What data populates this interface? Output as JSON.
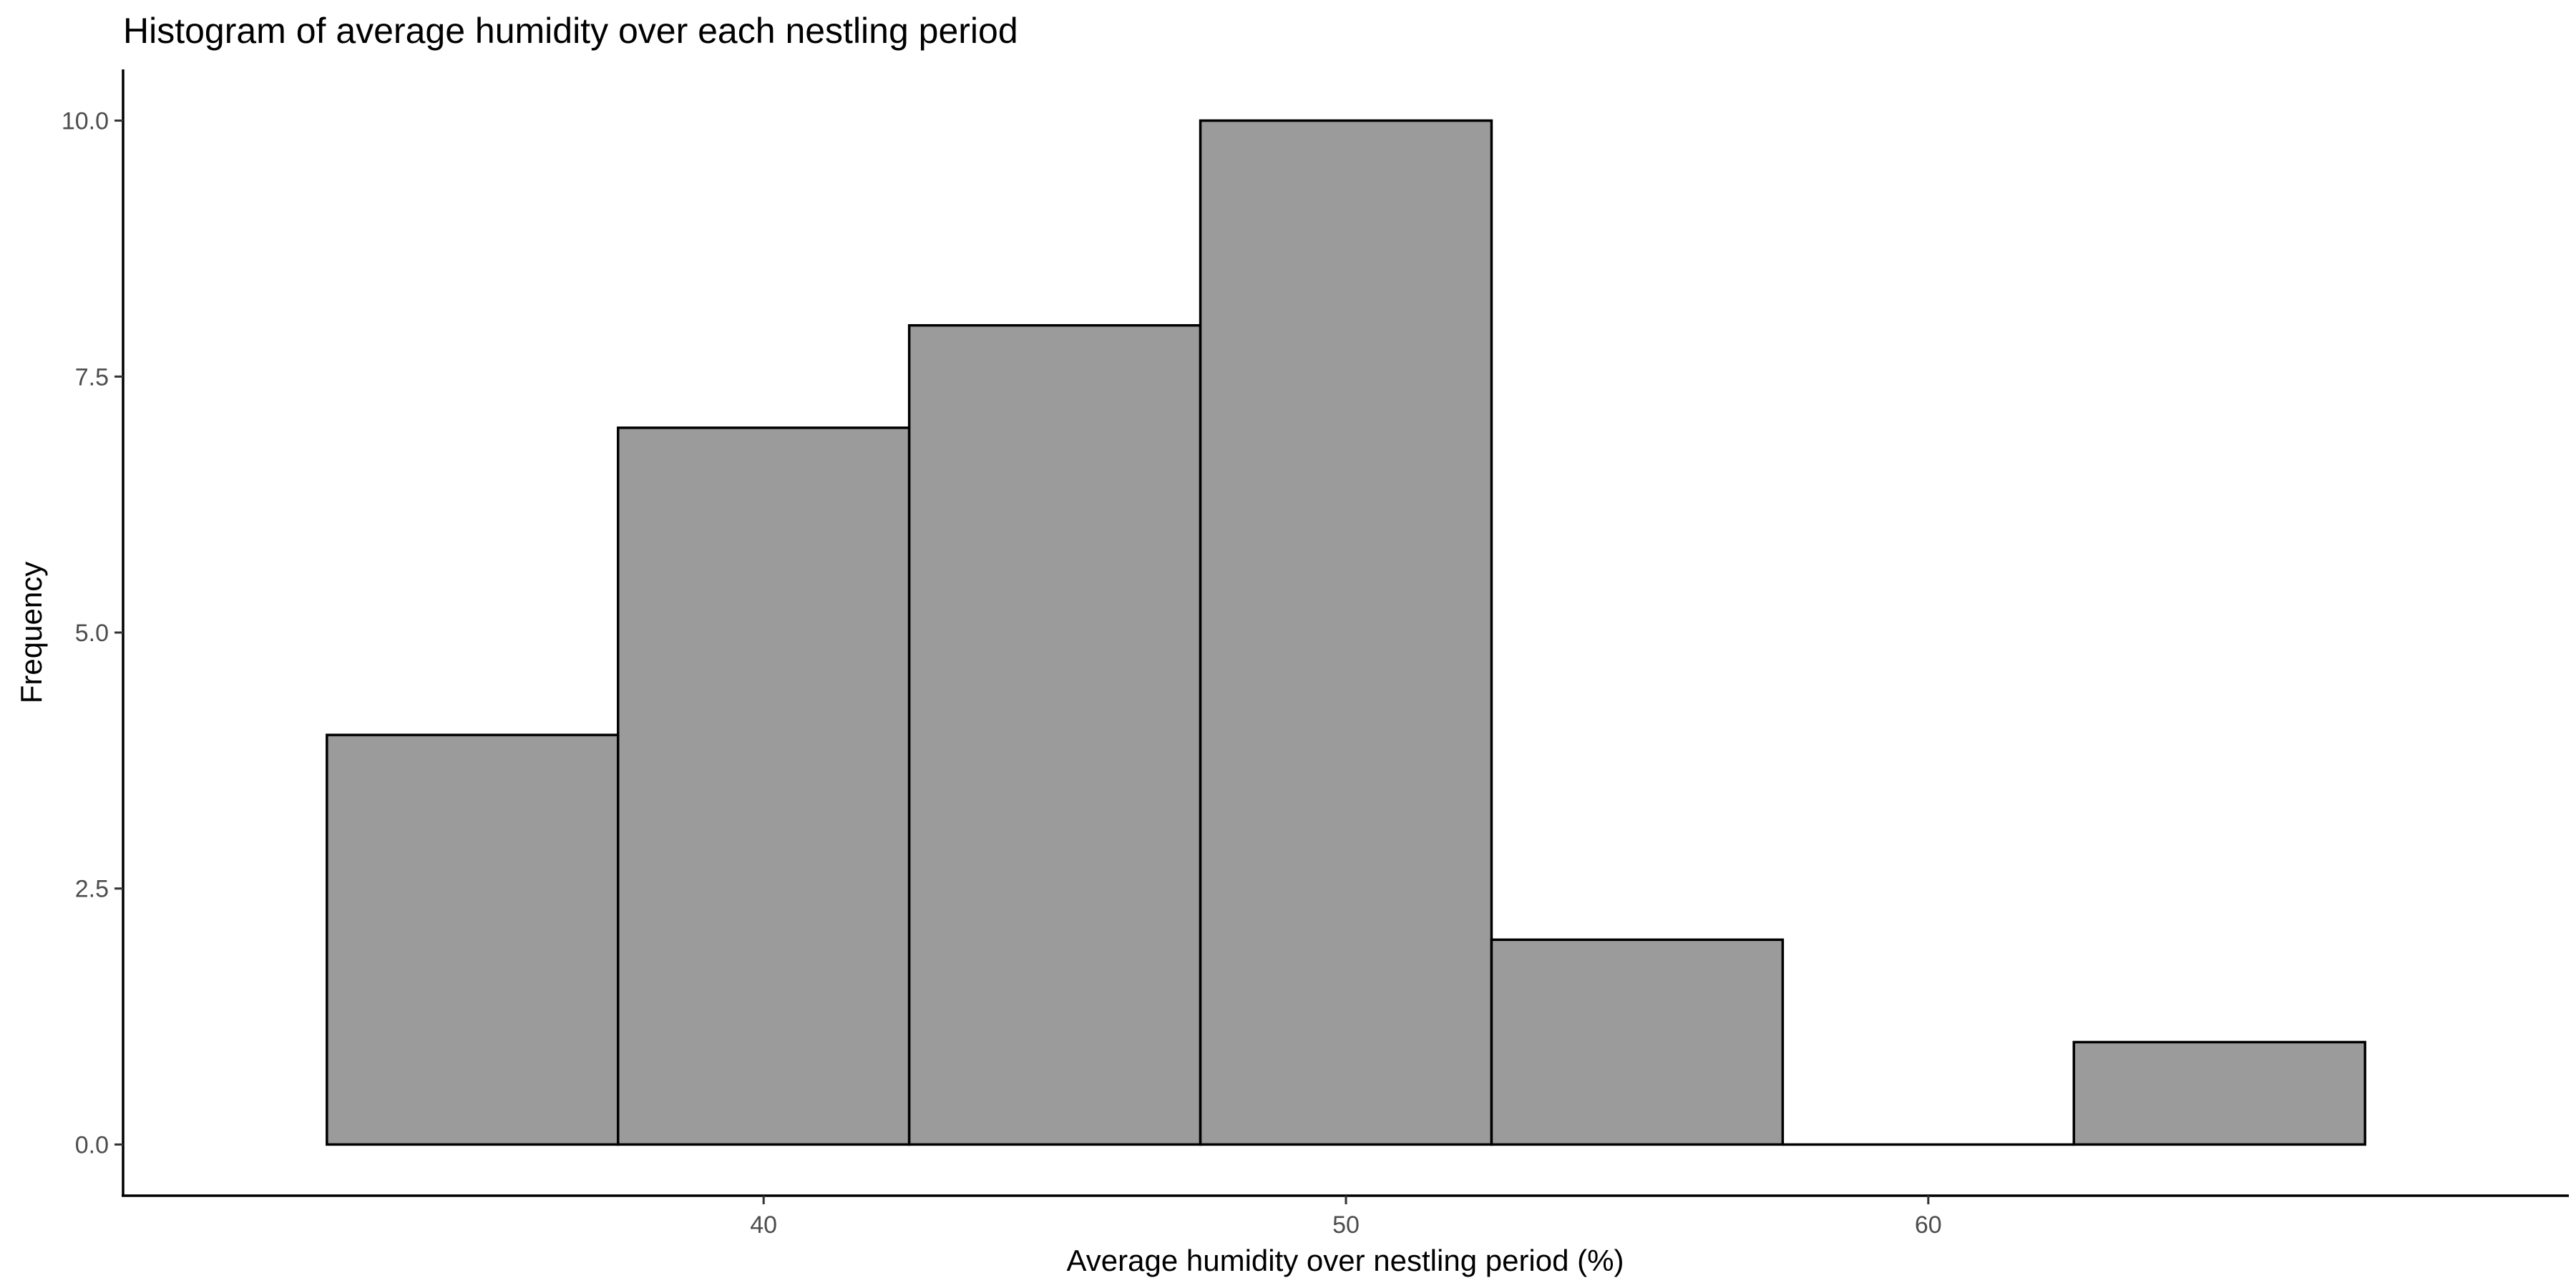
{
  "chart_data": {
    "type": "histogram",
    "title": "Histogram of average humidity over each nestling period",
    "xlabel": "Average humidity over nestling period (%)",
    "ylabel": "Frequency",
    "bin_width": 5,
    "bins": [
      {
        "start": 32.5,
        "end": 37.5,
        "count": 4
      },
      {
        "start": 37.5,
        "end": 42.5,
        "count": 7
      },
      {
        "start": 42.5,
        "end": 47.5,
        "count": 8
      },
      {
        "start": 47.5,
        "end": 52.5,
        "count": 10
      },
      {
        "start": 52.5,
        "end": 57.5,
        "count": 2
      },
      {
        "start": 57.5,
        "end": 62.5,
        "count": 0
      },
      {
        "start": 62.5,
        "end": 67.5,
        "count": 1
      }
    ],
    "xlim": [
      29.0,
      71.0
    ],
    "ylim": [
      -0.5,
      10.5
    ],
    "x_ticks": [
      40,
      50,
      60
    ],
    "x_tick_labels": [
      "40",
      "50",
      "60"
    ],
    "y_ticks": [
      0,
      2.5,
      5,
      7.5,
      10
    ],
    "y_tick_labels": [
      "0.0",
      "2.5",
      "5.0",
      "7.5",
      "10.0"
    ],
    "grid": false,
    "legend": "none",
    "colors": {
      "bar_fill": "#9b9b9b",
      "bar_outline": "#000000",
      "background": "#ffffff"
    }
  }
}
